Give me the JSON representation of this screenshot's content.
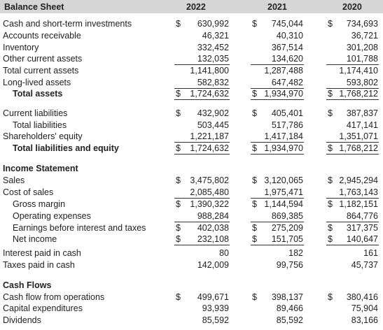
{
  "header": {
    "title": "Balance Sheet",
    "years": [
      "2022",
      "2021",
      "2020"
    ]
  },
  "balance_sheet": {
    "rows": [
      {
        "label": "Cash and short-term investments",
        "cells": [
          {
            "sign": "$",
            "amount": "630,992"
          },
          {
            "sign": "$",
            "amount": "745,044"
          },
          {
            "sign": "$",
            "amount": "734,693"
          }
        ]
      },
      {
        "label": "Accounts receivable",
        "cells": [
          "46,321",
          "40,310",
          "36,721"
        ]
      },
      {
        "label": "Inventory",
        "cells": [
          "332,452",
          "367,514",
          "301,208"
        ]
      },
      {
        "label": "Other current assets",
        "cells": [
          "132,035",
          "134,620",
          "101,788"
        ]
      },
      {
        "label": "Total current assets",
        "cells": [
          "1,141,800",
          "1,287,488",
          "1,174,410"
        ]
      },
      {
        "label": "Long-lived assets",
        "cells": [
          "582,832",
          "647,482",
          "593,802"
        ]
      },
      {
        "label": "Total assets",
        "cells": [
          {
            "sign": "$",
            "amount": "1,724,632"
          },
          {
            "sign": "$",
            "amount": "1,934,970"
          },
          {
            "sign": "$",
            "amount": "1,768,212"
          }
        ]
      },
      {
        "label": "Current liabilities",
        "cells": [
          {
            "sign": "$",
            "amount": "432,902"
          },
          {
            "sign": "$",
            "amount": "405,401"
          },
          {
            "sign": "$",
            "amount": "387,837"
          }
        ]
      },
      {
        "label": "Total liabilities",
        "cells": [
          "503,445",
          "517,786",
          "417,141"
        ]
      },
      {
        "label": "Shareholders' equity",
        "cells": [
          "1,221,187",
          "1,417,184",
          "1,351,071"
        ]
      },
      {
        "label": "Total liabilities and equity",
        "cells": [
          {
            "sign": "$",
            "amount": "1,724,632"
          },
          {
            "sign": "$",
            "amount": "1,934,970"
          },
          {
            "sign": "$",
            "amount": "1,768,212"
          }
        ]
      }
    ]
  },
  "income_statement": {
    "title": "Income Statement",
    "rows": [
      {
        "label": "Sales",
        "cells": [
          {
            "sign": "$",
            "amount": "3,475,802"
          },
          {
            "sign": "$",
            "amount": "3,120,065"
          },
          {
            "sign": "$",
            "amount": "2,945,294"
          }
        ]
      },
      {
        "label": "Cost of sales",
        "cells": [
          "2,085,480",
          "1,975,471",
          "1,763,143"
        ]
      },
      {
        "label": "Gross margin",
        "cells": [
          {
            "sign": "$",
            "amount": "1,390,322"
          },
          {
            "sign": "$",
            "amount": "1,144,594"
          },
          {
            "sign": "$",
            "amount": "1,182,151"
          }
        ]
      },
      {
        "label": "Operating expenses",
        "cells": [
          "988,284",
          "869,385",
          "864,776"
        ]
      },
      {
        "label": "Earnings before interest and taxes",
        "cells": [
          {
            "sign": "$",
            "amount": "402,038"
          },
          {
            "sign": "$",
            "amount": "275,209"
          },
          {
            "sign": "$",
            "amount": "317,375"
          }
        ]
      },
      {
        "label": "Net income",
        "cells": [
          {
            "sign": "$",
            "amount": "232,108"
          },
          {
            "sign": "$",
            "amount": "151,705"
          },
          {
            "sign": "$",
            "amount": "140,647"
          }
        ]
      },
      {
        "label": "Interest paid in cash",
        "cells": [
          "80",
          "182",
          "161"
        ]
      },
      {
        "label": "Taxes paid in cash",
        "cells": [
          "142,009",
          "99,756",
          "45,737"
        ]
      }
    ]
  },
  "cash_flows": {
    "title": "Cash Flows",
    "rows": [
      {
        "label": "Cash flow from operations",
        "cells": [
          {
            "sign": "$",
            "amount": "499,671"
          },
          {
            "sign": "$",
            "amount": "398,137"
          },
          {
            "sign": "$",
            "amount": "380,416"
          }
        ]
      },
      {
        "label": "Capital expenditures",
        "cells": [
          "93,939",
          "89,466",
          "75,904"
        ]
      },
      {
        "label": "Dividends",
        "cells": [
          "85,592",
          "85,592",
          "83,166"
        ]
      }
    ]
  }
}
